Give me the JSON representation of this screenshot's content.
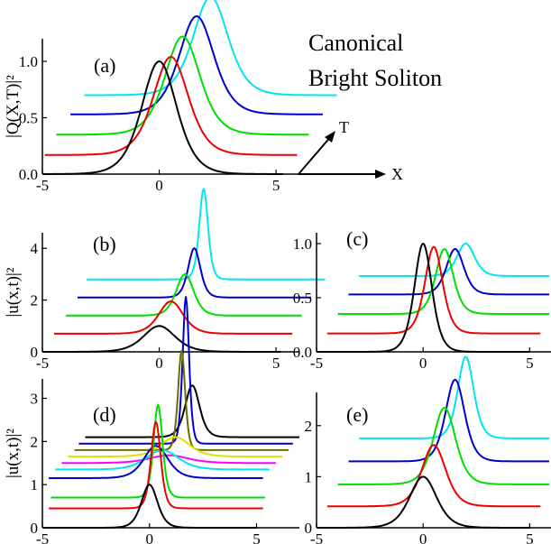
{
  "title_lines": [
    "Canonical",
    "Bright Soliton"
  ],
  "arrows": {
    "t_label": "T",
    "x_label": "X"
  },
  "chart_data": [
    {
      "id": "a",
      "type": "line",
      "panel_label": "(a)",
      "ylabel": "|Q(X,T)|²",
      "xlim": [
        -5,
        6
      ],
      "ylim": [
        0,
        1.2
      ],
      "xticks": [
        -5,
        0,
        5
      ],
      "yticks": [
        0.0,
        0.5,
        1.0
      ],
      "ytick_labels": [
        "0.0",
        "0.5",
        "1.0"
      ],
      "series": [
        {
          "color": "#00e5ee",
          "x0": 2.2,
          "width": 1.0,
          "height": 0.87,
          "baseline": 0.7,
          "xrange": [
            -3.2,
            7.6
          ]
        },
        {
          "color": "#0000cc",
          "x0": 1.6,
          "width": 1.0,
          "height": 0.87,
          "baseline": 0.53,
          "xrange": [
            -3.8,
            7.0
          ]
        },
        {
          "color": "#00dd00",
          "x0": 1.0,
          "width": 1.0,
          "height": 0.87,
          "baseline": 0.35,
          "xrange": [
            -4.4,
            6.4
          ]
        },
        {
          "color": "#ee0000",
          "x0": 0.5,
          "width": 1.0,
          "height": 0.87,
          "baseline": 0.17,
          "xrange": [
            -4.9,
            5.9
          ]
        },
        {
          "color": "#000000",
          "x0": 0.0,
          "width": 1.0,
          "height": 1.0,
          "baseline": 0.0,
          "xrange": [
            -5.0,
            5.3
          ]
        }
      ]
    },
    {
      "id": "b",
      "type": "line",
      "panel_label": "(b)",
      "ylabel": "|u(x,t)|²",
      "xlim": [
        -5,
        6
      ],
      "ylim": [
        0,
        4.6
      ],
      "xticks": [
        -5,
        0,
        5
      ],
      "yticks": [
        0,
        2,
        4
      ],
      "ytick_labels": [
        "0",
        "2",
        "4"
      ],
      "series": [
        {
          "color": "#00e5ee",
          "x0": 1.9,
          "width": 0.25,
          "height": 3.5,
          "baseline": 2.8,
          "xrange": [
            -3.1,
            7.1
          ]
        },
        {
          "color": "#0000cc",
          "x0": 1.5,
          "width": 0.35,
          "height": 1.9,
          "baseline": 2.1,
          "xrange": [
            -3.5,
            6.5
          ]
        },
        {
          "color": "#00dd00",
          "x0": 1.1,
          "width": 0.5,
          "height": 1.6,
          "baseline": 1.4,
          "xrange": [
            -4.0,
            6.1
          ]
        },
        {
          "color": "#ee0000",
          "x0": 0.5,
          "width": 0.7,
          "height": 1.25,
          "baseline": 0.7,
          "xrange": [
            -4.5,
            5.7
          ]
        },
        {
          "color": "#000000",
          "x0": 0.0,
          "width": 0.9,
          "height": 1.0,
          "baseline": 0.0,
          "xrange": [
            -5.0,
            5.2
          ]
        }
      ]
    },
    {
      "id": "c",
      "type": "line",
      "panel_label": "(c)",
      "ylabel": "",
      "xlim": [
        -5,
        6
      ],
      "ylim": [
        0,
        1.1
      ],
      "xticks": [
        -5,
        0,
        5
      ],
      "yticks": [
        0.0,
        0.5,
        1.0
      ],
      "ytick_labels": [
        "0.0",
        "0.5",
        "1.0"
      ],
      "series": [
        {
          "color": "#00e5ee",
          "x0": 2.0,
          "width": 0.55,
          "height": 0.3,
          "baseline": 0.7,
          "xrange": [
            -3.0,
            7.0
          ]
        },
        {
          "color": "#0000cc",
          "x0": 1.5,
          "width": 0.55,
          "height": 0.42,
          "baseline": 0.53,
          "xrange": [
            -3.5,
            6.5
          ]
        },
        {
          "color": "#00dd00",
          "x0": 1.0,
          "width": 0.55,
          "height": 0.6,
          "baseline": 0.35,
          "xrange": [
            -4.0,
            6.0
          ]
        },
        {
          "color": "#ee0000",
          "x0": 0.5,
          "width": 0.55,
          "height": 0.8,
          "baseline": 0.17,
          "xrange": [
            -4.5,
            5.5
          ]
        },
        {
          "color": "#000000",
          "x0": 0.0,
          "width": 0.55,
          "height": 1.0,
          "baseline": 0.0,
          "xrange": [
            -5.0,
            5.0
          ]
        }
      ]
    },
    {
      "id": "d",
      "type": "line",
      "panel_label": "(d)",
      "ylabel": "|u(x,t)|²",
      "xlim": [
        -5,
        7
      ],
      "ylim": [
        0,
        3.45
      ],
      "xticks": [
        -5,
        0,
        5
      ],
      "yticks": [
        0,
        1,
        2,
        3
      ],
      "ytick_labels": [
        "0",
        "1",
        "2",
        "3"
      ],
      "series": [
        {
          "color": "#000000",
          "x0": 2.0,
          "width": 0.45,
          "height": 1.2,
          "baseline": 2.1,
          "xrange": [
            -3.0,
            7.0
          ]
        },
        {
          "color": "#0000cc",
          "x0": 1.7,
          "width": 0.2,
          "height": 3.4,
          "baseline": 1.95,
          "xrange": [
            -3.3,
            6.7
          ]
        },
        {
          "color": "#6b6b00",
          "x0": 1.5,
          "width": 0.22,
          "height": 2.3,
          "baseline": 1.8,
          "xrange": [
            -3.5,
            6.5
          ]
        },
        {
          "color": "#e0e000",
          "x0": 1.2,
          "width": 0.9,
          "height": 0.45,
          "baseline": 1.65,
          "xrange": [
            -3.8,
            6.2
          ]
        },
        {
          "color": "#ff00ff",
          "x0": 0.9,
          "width": 1.2,
          "height": 0.18,
          "baseline": 1.5,
          "xrange": [
            -4.1,
            5.9
          ]
        },
        {
          "color": "#00e5ee",
          "x0": 0.6,
          "width": 1.0,
          "height": 0.45,
          "baseline": 1.35,
          "xrange": [
            -4.4,
            5.6
          ]
        },
        {
          "color": "#0000cc",
          "x0": 0.3,
          "width": 0.75,
          "height": 0.75,
          "baseline": 1.15,
          "xrange": [
            -4.7,
            5.3
          ]
        },
        {
          "color": "#00dd00",
          "x0": 0.4,
          "width": 0.28,
          "height": 2.15,
          "baseline": 0.7,
          "xrange": [
            -4.6,
            5.4
          ]
        },
        {
          "color": "#ee0000",
          "x0": 0.3,
          "width": 0.3,
          "height": 2.0,
          "baseline": 0.45,
          "xrange": [
            -4.7,
            5.3
          ]
        },
        {
          "color": "#000000",
          "x0": 0.0,
          "width": 0.5,
          "height": 1.0,
          "baseline": 0.0,
          "xrange": [
            -5.0,
            5.0
          ]
        }
      ]
    },
    {
      "id": "e",
      "type": "line",
      "panel_label": "(e)",
      "ylabel": "",
      "xlim": [
        -5,
        6
      ],
      "ylim": [
        0,
        2.65
      ],
      "xticks": [
        -5,
        0,
        5
      ],
      "yticks": [
        0,
        1,
        2
      ],
      "ytick_labels": [
        "0",
        "1",
        "2"
      ],
      "series": [
        {
          "color": "#00e5ee",
          "x0": 2.0,
          "width": 0.5,
          "height": 1.6,
          "baseline": 1.75,
          "xrange": [
            -3.0,
            7.0
          ]
        },
        {
          "color": "#0000cc",
          "x0": 1.5,
          "width": 0.6,
          "height": 1.6,
          "baseline": 1.3,
          "xrange": [
            -3.5,
            6.5
          ]
        },
        {
          "color": "#00dd00",
          "x0": 1.0,
          "width": 0.7,
          "height": 1.5,
          "baseline": 0.85,
          "xrange": [
            -4.0,
            6.0
          ]
        },
        {
          "color": "#ee0000",
          "x0": 0.5,
          "width": 0.75,
          "height": 1.2,
          "baseline": 0.42,
          "xrange": [
            -4.5,
            5.5
          ]
        },
        {
          "color": "#000000",
          "x0": 0.0,
          "width": 0.85,
          "height": 1.0,
          "baseline": 0.0,
          "xrange": [
            -5.0,
            5.0
          ]
        }
      ]
    }
  ]
}
